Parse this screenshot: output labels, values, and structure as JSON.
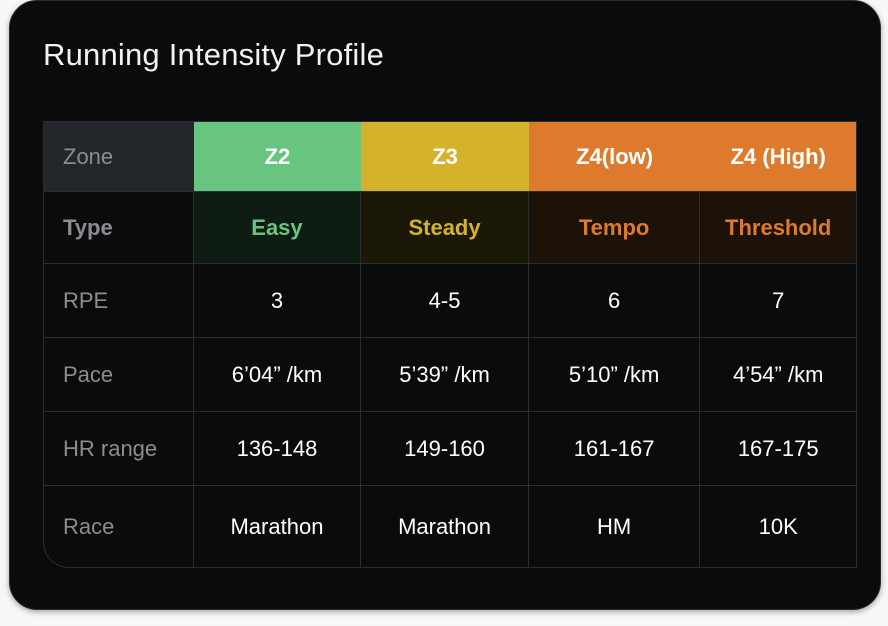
{
  "title": "Running Intensity Profile",
  "colors": {
    "z2": "#67c57f",
    "z3": "#d5b22c",
    "z4_low": "#dd7a2d",
    "z4_high": "#dd7a2d",
    "card_bg": "#0b0b0b"
  },
  "table": {
    "header": {
      "label": "Zone",
      "zones": [
        "Z2",
        "Z3",
        "Z4(low)",
        "Z4 (High)"
      ]
    },
    "rows": [
      {
        "label": "Type",
        "values": [
          "Easy",
          "Steady",
          "Tempo",
          "Threshold"
        ]
      },
      {
        "label": "RPE",
        "values": [
          "3",
          "4-5",
          "6",
          "7"
        ]
      },
      {
        "label": "Pace",
        "values": [
          "6’04” /km",
          "5’39” /km",
          "5’10” /km",
          "4’54” /km"
        ]
      },
      {
        "label": "HR range",
        "values": [
          "136-148",
          "149-160",
          "161-167",
          "167-175"
        ]
      },
      {
        "label": "Race",
        "values": [
          "Marathon",
          "Marathon",
          "HM",
          "10K"
        ]
      }
    ]
  }
}
